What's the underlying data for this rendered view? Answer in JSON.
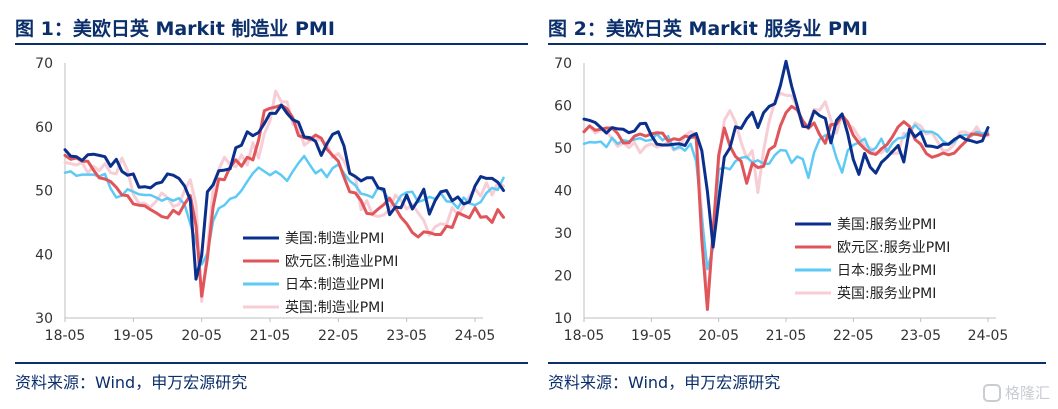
{
  "panels": [
    {
      "title": "图 1：美欧日英 Markit 制造业 PMI",
      "source": "资料来源：Wind，申万宏源研究"
    },
    {
      "title": "图 2：美欧日英 Markit 服务业 PMI",
      "source": "资料来源：Wind，申万宏源研究"
    }
  ],
  "watermark": "格隆汇",
  "colors": {
    "us": "#0b2f8c",
    "eu": "#e0555a",
    "jp": "#5dcaf5",
    "uk": "#f7cdd6",
    "title": "#0b2f6b"
  },
  "chart_data": [
    {
      "type": "line",
      "title": "美欧日英 Markit 制造业 PMI",
      "xticks": [
        "18-05",
        "19-05",
        "20-05",
        "21-05",
        "22-05",
        "23-05",
        "24-05"
      ],
      "x_start": "18-05",
      "x_end": "24-05",
      "ylim": [
        30,
        70
      ],
      "yticks": [
        30,
        40,
        50,
        60,
        70
      ],
      "grid": false,
      "legend_position": "bottom-left-center",
      "series": [
        {
          "name": "美国:制造业PMI",
          "color": "#0b2f8c",
          "width": 3,
          "values": [
            56.4,
            55.4,
            55.3,
            54.7,
            55.6,
            55.7,
            55.5,
            55.3,
            53.8,
            54.9,
            53.0,
            52.4,
            52.6,
            50.5,
            50.6,
            50.4,
            51.1,
            51.3,
            52.6,
            52.4,
            51.9,
            50.7,
            48.5,
            36.1,
            39.8,
            49.8,
            50.9,
            53.1,
            53.2,
            53.4,
            56.7,
            57.1,
            59.2,
            58.6,
            59.1,
            60.5,
            62.1,
            62.1,
            63.4,
            62.1,
            61.1,
            60.7,
            58.4,
            58.3,
            57.7,
            55.5,
            57.3,
            58.8,
            59.2,
            57.0,
            52.7,
            52.2,
            51.5,
            52.0,
            52.0,
            50.4,
            50.2,
            46.2,
            47.4,
            47.3,
            49.3,
            47.1,
            48.5,
            50.2,
            46.3,
            48.4,
            49.8,
            50.0,
            48.4,
            49.0,
            47.9,
            48.2,
            50.7,
            52.2,
            51.9,
            51.9,
            51.3,
            50.0
          ]
        },
        {
          "name": "欧元区:制造业PMI",
          "color": "#e0555a",
          "width": 3,
          "values": [
            55.5,
            54.9,
            55.1,
            54.6,
            54.6,
            53.2,
            52.0,
            51.8,
            51.4,
            50.5,
            49.3,
            49.2,
            47.9,
            47.7,
            47.6,
            47.0,
            46.5,
            45.9,
            45.7,
            46.9,
            46.3,
            47.9,
            49.2,
            44.5,
            33.4,
            39.4,
            47.4,
            51.8,
            51.7,
            53.7,
            54.8,
            53.8,
            55.2,
            54.8,
            57.9,
            62.5,
            62.9,
            63.1,
            63.4,
            62.8,
            61.4,
            58.6,
            58.3,
            58.0,
            58.7,
            58.2,
            56.5,
            55.5,
            54.6,
            52.1,
            49.8,
            49.6,
            48.4,
            46.4,
            46.3,
            47.1,
            47.8,
            48.8,
            47.3,
            45.8,
            44.8,
            43.4,
            42.7,
            43.5,
            43.4,
            43.1,
            43.1,
            44.4,
            44.2,
            46.5,
            46.1,
            45.7,
            47.3,
            45.8,
            45.9,
            45.0,
            47.0,
            45.8
          ]
        },
        {
          "name": "日本:制造业PMI",
          "color": "#5dcaf5",
          "width": 2.5,
          "values": [
            52.8,
            53.0,
            52.3,
            52.5,
            52.5,
            52.5,
            52.2,
            52.6,
            50.3,
            48.9,
            49.2,
            50.2,
            49.8,
            49.4,
            49.3,
            49.3,
            48.9,
            48.4,
            48.8,
            48.4,
            48.8,
            47.8,
            44.8,
            41.9,
            38.4,
            40.1,
            45.2,
            47.2,
            47.7,
            48.7,
            49.0,
            50.0,
            51.4,
            52.7,
            53.6,
            53.0,
            52.4,
            53.0,
            52.4,
            51.5,
            53.0,
            54.3,
            55.4,
            54.0,
            52.7,
            53.3,
            52.1,
            53.5,
            54.1,
            52.7,
            51.5,
            50.8,
            49.5,
            49.3,
            48.9,
            50.5,
            49.8,
            48.4,
            47.7,
            49.2,
            49.7,
            49.8,
            48.2,
            48.5,
            49.0,
            48.7,
            49.6,
            48.3,
            48.2,
            47.2,
            48.9,
            48.0,
            47.7,
            48.2,
            49.6,
            50.4,
            50.1,
            52.0
          ]
        },
        {
          "name": "英国:制造业PMI",
          "color": "#f7cdd6",
          "width": 3,
          "values": [
            54.4,
            54.2,
            54.0,
            54.4,
            52.8,
            53.8,
            53.1,
            54.2,
            52.8,
            52.6,
            55.1,
            53.1,
            49.4,
            48.0,
            48.0,
            47.4,
            48.3,
            49.6,
            48.9,
            47.5,
            47.8,
            50.0,
            51.7,
            47.8,
            32.6,
            40.7,
            50.1,
            53.3,
            55.2,
            54.1,
            53.7,
            55.6,
            54.0,
            57.5,
            55.1,
            58.9,
            60.9,
            65.6,
            63.9,
            63.9,
            60.4,
            60.3,
            57.1,
            57.8,
            58.1,
            57.9,
            57.3,
            55.2,
            55.8,
            54.6,
            52.8,
            52.1,
            47.0,
            48.4,
            46.2,
            45.9,
            46.2,
            47.0,
            49.3,
            48.4,
            47.1,
            47.8,
            46.5,
            45.3,
            43.0,
            44.3,
            44.8,
            44.6,
            47.3,
            46.2,
            47.5,
            49.1,
            50.3,
            49.1,
            51.2,
            49.3,
            51.2,
            50.7
          ]
        }
      ]
    },
    {
      "type": "line",
      "title": "美欧日英 Markit 服务业 PMI",
      "xticks": [
        "18-05",
        "19-05",
        "20-05",
        "21-05",
        "22-05",
        "23-05",
        "24-05"
      ],
      "x_start": "18-05",
      "x_end": "24-05",
      "ylim": [
        10,
        70
      ],
      "yticks": [
        10,
        20,
        30,
        40,
        50,
        60,
        70
      ],
      "grid": false,
      "legend_position": "bottom-right",
      "series": [
        {
          "name": "美国:服务业PMI",
          "color": "#0b2f8c",
          "width": 3,
          "values": [
            56.8,
            56.5,
            56.0,
            54.8,
            53.5,
            54.8,
            54.5,
            54.4,
            53.6,
            54.0,
            55.7,
            55.8,
            53.0,
            50.9,
            50.7,
            50.7,
            50.9,
            51.0,
            50.6,
            52.8,
            53.4,
            49.4,
            39.8,
            26.7,
            37.5,
            47.9,
            50.0,
            55.0,
            54.6,
            56.9,
            58.4,
            54.8,
            58.3,
            59.8,
            60.4,
            64.7,
            70.4,
            64.6,
            59.9,
            55.1,
            54.9,
            58.7,
            57.6,
            57.0,
            51.2,
            56.5,
            58.0,
            53.4,
            47.3,
            43.8,
            48.7,
            45.5,
            44.1,
            46.6,
            47.8,
            49.2,
            50.6,
            46.7,
            54.4,
            52.6,
            53.7,
            50.5,
            50.4,
            50.1,
            50.9,
            50.9,
            52.0,
            52.8,
            52.0,
            51.7,
            51.3,
            51.7,
            54.8
          ]
        },
        {
          "name": "欧元区:服务业PMI",
          "color": "#e0555a",
          "width": 3,
          "values": [
            53.8,
            55.2,
            54.2,
            54.4,
            54.7,
            54.7,
            53.4,
            51.2,
            51.2,
            52.8,
            53.3,
            52.8,
            53.3,
            53.6,
            53.5,
            51.6,
            52.2,
            51.9,
            52.8,
            52.5,
            52.6,
            28.4,
            12.0,
            30.5,
            48.3,
            54.7,
            50.5,
            48.0,
            46.9,
            41.7,
            46.4,
            45.4,
            45.7,
            49.6,
            50.5,
            55.2,
            58.3,
            59.8,
            59.0,
            56.4,
            54.6,
            55.9,
            53.1,
            51.1,
            55.5,
            55.6,
            57.7,
            56.1,
            53.0,
            51.2,
            49.8,
            48.8,
            48.5,
            49.8,
            50.8,
            52.7,
            55.0,
            56.2,
            55.1,
            52.0,
            50.9,
            48.7,
            47.8,
            48.2,
            48.8,
            48.4,
            48.8,
            50.2,
            51.5,
            53.3,
            53.2,
            52.9,
            53.2
          ]
        },
        {
          "name": "日本:服务业PMI",
          "color": "#5dcaf5",
          "width": 2.5,
          "values": [
            51.0,
            51.4,
            51.3,
            51.5,
            50.2,
            52.4,
            51.0,
            51.8,
            51.6,
            52.0,
            52.3,
            51.7,
            51.9,
            53.3,
            51.8,
            52.8,
            49.7,
            50.3,
            49.4,
            51.0,
            46.8,
            33.8,
            21.5,
            26.5,
            45.0,
            45.4,
            45.0,
            46.9,
            47.7,
            47.9,
            46.6,
            47.1,
            46.3,
            46.3,
            48.3,
            49.5,
            49.4,
            46.5,
            48.0,
            47.4,
            43.0,
            48.9,
            52.1,
            53.0,
            52.1,
            47.6,
            44.2,
            49.4,
            50.7,
            51.3,
            52.2,
            49.3,
            50.0,
            52.2,
            49.1,
            51.2,
            52.3,
            52.4,
            54.0,
            55.4,
            54.1,
            53.8,
            53.8,
            53.1,
            51.6,
            50.8,
            51.5,
            52.9,
            53.1,
            52.8,
            53.8,
            53.4,
            53.8
          ]
        },
        {
          "name": "英国:服务业PMI",
          "color": "#f7cdd6",
          "width": 3,
          "values": [
            54.0,
            55.1,
            53.5,
            54.3,
            53.9,
            52.2,
            50.4,
            51.2,
            50.1,
            51.3,
            48.9,
            50.4,
            51.0,
            50.2,
            50.6,
            51.4,
            49.5,
            50.0,
            52.9,
            53.9,
            53.2,
            34.5,
            13.4,
            29.0,
            47.1,
            56.5,
            58.8,
            56.1,
            51.4,
            47.6,
            49.4,
            39.5,
            49.5,
            56.3,
            61.0,
            62.9,
            62.4,
            62.3,
            59.6,
            55.0,
            55.4,
            59.1,
            58.9,
            60.9,
            56.6,
            53.5,
            58.0,
            55.6,
            54.7,
            52.6,
            50.5,
            50.0,
            48.8,
            48.9,
            49.9,
            48.7,
            48.8,
            53.5,
            52.9,
            55.9,
            55.2,
            53.3,
            53.7,
            51.5,
            49.3,
            49.5,
            50.9,
            53.7,
            53.8,
            53.1,
            55.0,
            52.9,
            52.9
          ]
        }
      ]
    }
  ]
}
